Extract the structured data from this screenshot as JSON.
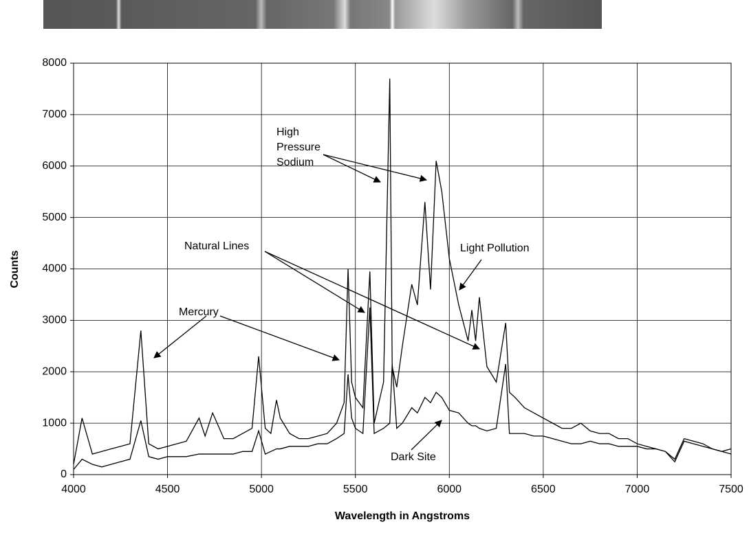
{
  "chart_data": {
    "type": "line",
    "x_label": "Wavelength in Angstroms",
    "y_label": "Counts",
    "x": [
      4000,
      4045,
      4100,
      4150,
      4200,
      4250,
      4300,
      4358,
      4400,
      4450,
      4500,
      4550,
      4600,
      4668,
      4700,
      4740,
      4800,
      4850,
      4900,
      4950,
      4985,
      5020,
      5050,
      5080,
      5100,
      5150,
      5200,
      5250,
      5300,
      5350,
      5400,
      5440,
      5461,
      5480,
      5500,
      5540,
      5577,
      5600,
      5650,
      5683,
      5696,
      5720,
      5750,
      5800,
      5830,
      5870,
      5900,
      5930,
      5960,
      6000,
      6050,
      6100,
      6120,
      6140,
      6160,
      6200,
      6250,
      6300,
      6320,
      6350,
      6400,
      6450,
      6500,
      6550,
      6600,
      6650,
      6700,
      6750,
      6800,
      6850,
      6900,
      6950,
      7000,
      7050,
      7100,
      7150,
      7200,
      7250,
      7300,
      7350,
      7400,
      7450,
      7500
    ],
    "series": [
      {
        "name": "Light Pollution",
        "color": "#000000",
        "values": [
          200,
          1100,
          400,
          450,
          500,
          550,
          600,
          2800,
          600,
          500,
          550,
          600,
          650,
          1100,
          750,
          1200,
          700,
          700,
          800,
          900,
          2300,
          900,
          800,
          1450,
          1100,
          800,
          700,
          700,
          750,
          800,
          1000,
          1400,
          4000,
          1800,
          1500,
          1300,
          3950,
          1000,
          1800,
          7700,
          2100,
          1700,
          2500,
          3700,
          3300,
          5300,
          3600,
          6100,
          5500,
          4200,
          3300,
          2600,
          3200,
          2600,
          3450,
          2100,
          1800,
          2950,
          1600,
          1500,
          1300,
          1200,
          1100,
          1000,
          900,
          900,
          1000,
          850,
          800,
          800,
          700,
          700,
          600,
          550,
          500,
          450,
          300,
          700,
          650,
          600,
          500,
          450,
          400
        ]
      },
      {
        "name": "Dark Site",
        "color": "#000000",
        "values": [
          100,
          300,
          200,
          150,
          200,
          250,
          300,
          1050,
          350,
          300,
          350,
          350,
          350,
          400,
          400,
          400,
          400,
          400,
          450,
          450,
          850,
          400,
          450,
          500,
          500,
          550,
          550,
          550,
          600,
          600,
          700,
          800,
          1950,
          1100,
          900,
          800,
          3250,
          800,
          900,
          1000,
          2150,
          900,
          1000,
          1300,
          1200,
          1500,
          1400,
          1600,
          1500,
          1250,
          1200,
          1000,
          950,
          950,
          900,
          850,
          900,
          2150,
          800,
          800,
          800,
          750,
          750,
          700,
          650,
          600,
          600,
          650,
          600,
          600,
          550,
          550,
          550,
          500,
          500,
          450,
          250,
          650,
          600,
          550,
          500,
          450,
          500
        ]
      }
    ],
    "annotations": [
      "Mercury",
      "Natural Lines",
      "High Pressure Sodium",
      "Light Pollution",
      "Dark Site"
    ],
    "xlim": [
      4000,
      7500
    ],
    "ylim": [
      0,
      8000
    ],
    "xticks": [
      4000,
      4500,
      5000,
      5500,
      6000,
      6500,
      7000,
      7500
    ],
    "yticks": [
      0,
      1000,
      2000,
      3000,
      4000,
      5000,
      6000,
      7000,
      8000
    ],
    "grid": true
  }
}
